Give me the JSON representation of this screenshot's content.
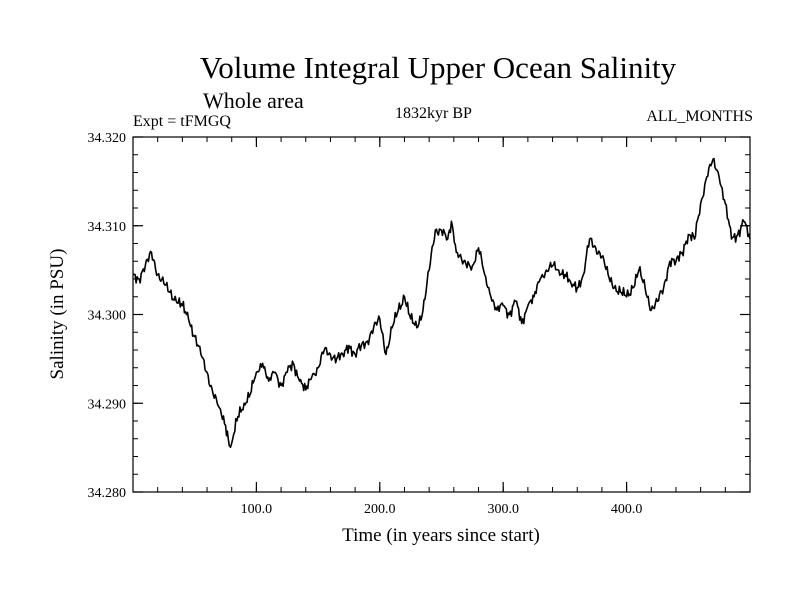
{
  "chart_data": {
    "type": "line",
    "title": "Volume Integral Upper Ocean Salinity",
    "subtitle": "Whole area",
    "annotations": {
      "left": "Expt = tFMGQ",
      "center": "1832kyr BP",
      "right": "ALL_MONTHS"
    },
    "xlabel": "Time (in years since start)",
    "ylabel": "Salinity (in PSU)",
    "xlim": [
      0,
      500
    ],
    "ylim": [
      34.28,
      34.32
    ],
    "xticks_major": [
      100,
      200,
      300,
      400
    ],
    "xtick_labels": [
      "100.0",
      "200.0",
      "300.0",
      "400.0"
    ],
    "xtick_minor_step": 20,
    "yticks_major": [
      34.28,
      34.29,
      34.3,
      34.31,
      34.32
    ],
    "ytick_labels": [
      "34.280",
      "34.290",
      "34.300",
      "34.310",
      "34.320"
    ],
    "ytick_minor_step": 0.002,
    "grid": false,
    "series": [
      {
        "name": "Salinity",
        "color": "#000000",
        "x": [
          0,
          5,
          10,
          15,
          20,
          25,
          30,
          35,
          40,
          45,
          50,
          55,
          60,
          65,
          70,
          75,
          78,
          80,
          85,
          90,
          95,
          100,
          105,
          110,
          115,
          120,
          125,
          130,
          135,
          140,
          145,
          150,
          155,
          160,
          165,
          170,
          175,
          180,
          185,
          190,
          195,
          200,
          205,
          210,
          215,
          220,
          225,
          230,
          235,
          240,
          245,
          250,
          255,
          258,
          262,
          268,
          275,
          280,
          285,
          290,
          295,
          300,
          305,
          310,
          315,
          320,
          325,
          330,
          335,
          340,
          345,
          350,
          355,
          360,
          365,
          370,
          375,
          380,
          385,
          390,
          395,
          400,
          405,
          410,
          415,
          420,
          425,
          430,
          435,
          440,
          445,
          450,
          455,
          460,
          465,
          470,
          475,
          480,
          485,
          490,
          495,
          500
        ],
        "values": [
          34.3045,
          34.304,
          34.3055,
          34.307,
          34.3045,
          34.3035,
          34.3025,
          34.3015,
          34.301,
          34.2995,
          34.2975,
          34.2955,
          34.2935,
          34.291,
          34.2895,
          34.2875,
          34.2852,
          34.2855,
          34.2885,
          34.29,
          34.291,
          34.2935,
          34.2945,
          34.2925,
          34.2935,
          34.292,
          34.2935,
          34.2945,
          34.2925,
          34.2915,
          34.293,
          34.294,
          34.296,
          34.2955,
          34.295,
          34.2955,
          34.2965,
          34.2955,
          34.2965,
          34.297,
          34.2985,
          34.2995,
          34.2955,
          34.2985,
          34.3005,
          34.302,
          34.2995,
          34.2985,
          34.3005,
          34.305,
          34.3095,
          34.3095,
          34.3085,
          34.3105,
          34.307,
          34.306,
          34.3055,
          34.3075,
          34.3045,
          34.302,
          34.3005,
          34.301,
          34.3,
          34.3015,
          34.299,
          34.301,
          34.302,
          34.304,
          34.305,
          34.3055,
          34.305,
          34.3045,
          34.3035,
          34.303,
          34.3045,
          34.3085,
          34.3075,
          34.3065,
          34.3045,
          34.303,
          34.3025,
          34.302,
          34.303,
          34.305,
          34.303,
          34.3005,
          34.3015,
          34.303,
          34.306,
          34.306,
          34.307,
          34.309,
          34.3085,
          34.3125,
          34.3155,
          34.3175,
          34.3155,
          34.3125,
          34.3085,
          34.309,
          34.3105,
          34.3085
        ]
      }
    ]
  }
}
